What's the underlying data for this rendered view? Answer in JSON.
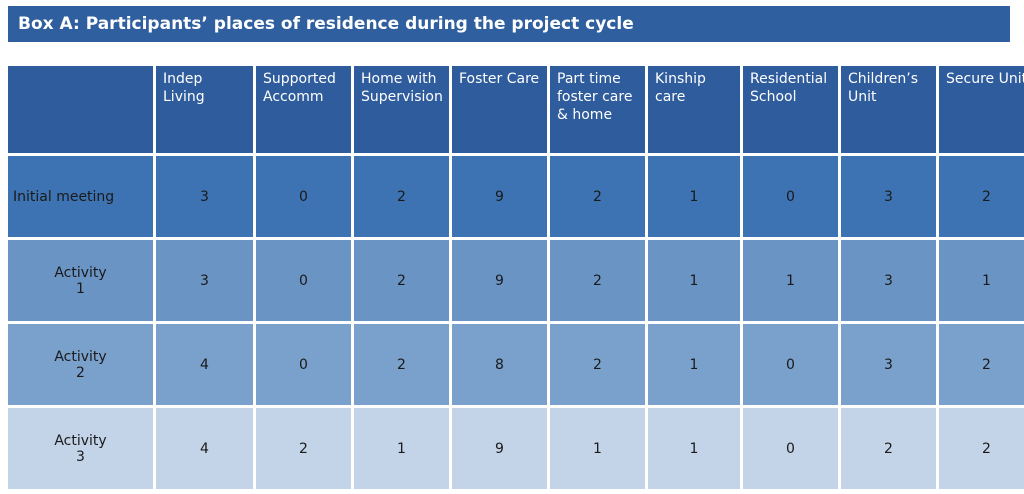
{
  "title": "Box A: Participants’ places of residence during the project cycle",
  "columns": [
    [
      "Indep Living"
    ],
    [
      "Supported",
      "Accomm"
    ],
    [
      "Home with",
      "Supervision"
    ],
    [
      "Foster Care"
    ],
    [
      "Part time",
      "foster care",
      "& home"
    ],
    [
      "Kinship",
      "care"
    ],
    [
      "Residential",
      "School"
    ],
    [
      "Children’s",
      "Unit"
    ],
    [
      "Secure Unit"
    ]
  ],
  "rows": [
    {
      "label": [
        "Initial meeting"
      ],
      "values": [
        "3",
        "0",
        "2",
        "9",
        "2",
        "1",
        "0",
        "3",
        "2"
      ]
    },
    {
      "label": [
        "Activity",
        "1"
      ],
      "values": [
        "3",
        "0",
        "2",
        "9",
        "2",
        "1",
        "1",
        "3",
        "1"
      ]
    },
    {
      "label": [
        "Activity",
        "2"
      ],
      "values": [
        "4",
        "0",
        "2",
        "8",
        "2",
        "1",
        "0",
        "3",
        "2"
      ]
    },
    {
      "label": [
        "Activity",
        "3"
      ],
      "values": [
        "4",
        "2",
        "1",
        "9",
        "1",
        "1",
        "0",
        "2",
        "2"
      ]
    }
  ],
  "colors": {
    "title_bg": "#2f5f9e",
    "header_bg": "#2e5c9c",
    "row_initial": "#3d73b3",
    "row_activity1": "#6a94c4",
    "row_activity2": "#7aa1cc",
    "row_activity3": "#c3d3e8"
  }
}
